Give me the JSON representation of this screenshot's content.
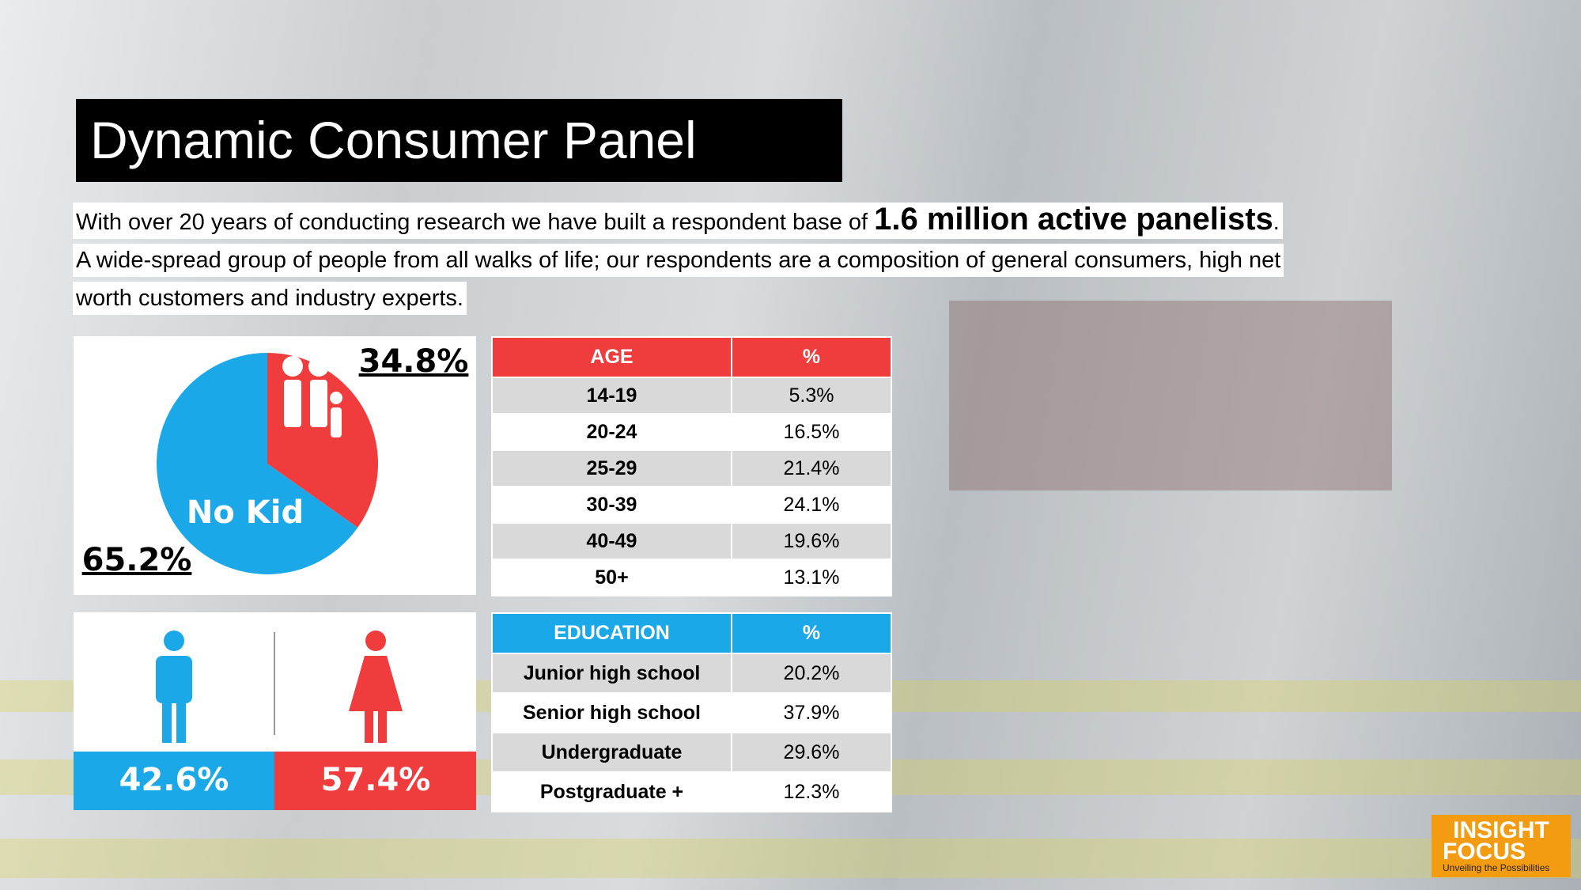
{
  "title": "Dynamic Consumer Panel",
  "intro": {
    "line1_start": "With over 20 years of conducting research we have built a respondent base of ",
    "line1_bold": "1.6 million active panelists",
    "line1_end": ".",
    "line2": "A wide-spread group of people from all walks of life; our respondents are a composition of  general consumers, high net",
    "line3": "worth customers and industry experts."
  },
  "kids_pie": {
    "values": [
      34.8,
      65.2
    ],
    "value_labels": [
      "34.8%",
      "65.2%"
    ],
    "colors": [
      "#f03c3c",
      "#1aa8e8"
    ],
    "center_label": "No Kid"
  },
  "gender": {
    "male": "42.6%",
    "female": "57.4%"
  },
  "age_table": {
    "header": [
      "AGE",
      "%"
    ],
    "rows": [
      [
        "14-19",
        "5.3%"
      ],
      [
        "20-24",
        "16.5%"
      ],
      [
        "25-29",
        "21.4%"
      ],
      [
        "30-39",
        "24.1%"
      ],
      [
        "40-49",
        "19.6%"
      ],
      [
        "50+",
        "13.1%"
      ]
    ]
  },
  "education_table": {
    "header": [
      "EDUCATION",
      "%"
    ],
    "rows": [
      [
        "Junior high school",
        "20.2%"
      ],
      [
        "Senior high school",
        "37.9%"
      ],
      [
        "Undergraduate",
        "29.6%"
      ],
      [
        "Postgraduate +",
        "12.3%"
      ]
    ]
  },
  "logo": {
    "line1": "INSIGHT",
    "line2": "FOCUS",
    "tagline": "Unveiling the Possibilities"
  }
}
